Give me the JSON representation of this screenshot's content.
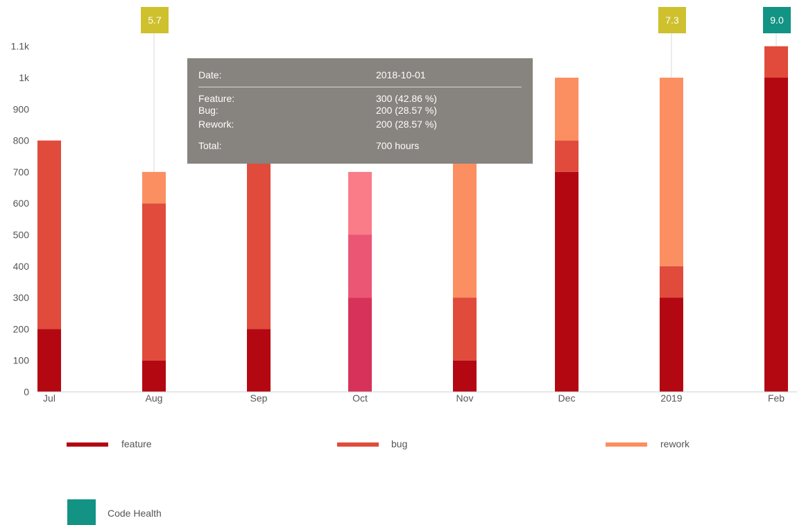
{
  "chart_data": {
    "type": "bar",
    "stacked": true,
    "categories": [
      "Jul",
      "Aug",
      "Sep",
      "Oct",
      "Nov",
      "Dec",
      "2019",
      "Feb"
    ],
    "ylim": [
      0,
      1100
    ],
    "yticks": [
      0,
      100,
      200,
      300,
      400,
      500,
      600,
      700,
      800,
      900,
      1000,
      1100
    ],
    "ytick_labels": [
      "0",
      "100",
      "200",
      "300",
      "400",
      "500",
      "600",
      "700",
      "800",
      "900",
      "1k",
      "1.1k"
    ],
    "series": [
      {
        "name": "feature",
        "values": [
          200,
          100,
          200,
          300,
          100,
          700,
          300,
          1000
        ],
        "color": "#b30812"
      },
      {
        "name": "bug",
        "values": [
          600,
          500,
          600,
          200,
          200,
          100,
          100,
          100
        ],
        "color": "#e04b3b"
      },
      {
        "name": "rework",
        "values": [
          0,
          100,
          0,
          200,
          700,
          200,
          600,
          0
        ],
        "color": "#fb8f62"
      }
    ],
    "highlighted_category": "Oct",
    "highlight_colors": [
      "#d6325a",
      "#ec5675",
      "#f97c88"
    ],
    "code_health": {
      "name": "Code Health",
      "markers": [
        {
          "category": "Aug",
          "value": "5.7",
          "color": "#cfc02e"
        },
        {
          "category": "2019",
          "value": "7.3",
          "color": "#cfc02e"
        },
        {
          "category": "Feb",
          "value": "9.0",
          "color": "#139384"
        }
      ]
    },
    "grid": false
  },
  "legend": {
    "feature": "feature",
    "bug": "bug",
    "rework": "rework",
    "code_health": "Code Health"
  },
  "tooltip": {
    "date_label": "Date:",
    "date_value": "2018-10-01",
    "feature_label": "Feature:",
    "feature_value": "300 (42.86 %)",
    "bug_label": "Bug:",
    "bug_value": "200 (28.57 %)",
    "rework_label": "Rework:",
    "rework_value": "200 (28.57 %)",
    "total_label": "Total:",
    "total_value": "700 hours"
  }
}
